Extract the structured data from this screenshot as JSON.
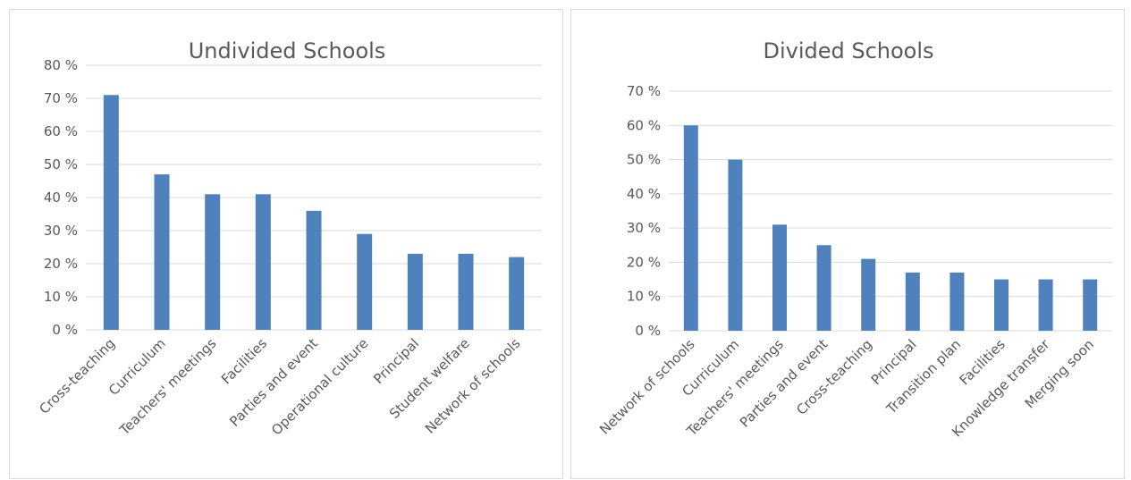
{
  "chart_data": [
    {
      "type": "bar",
      "title": "Undivided Schools",
      "xlabel": "",
      "ylabel": "",
      "ylim": [
        0,
        80
      ],
      "yticks": [
        "0 %",
        "10 %",
        "20 %",
        "30 %",
        "40 %",
        "50 %",
        "60 %",
        "70 %",
        "80 %"
      ],
      "categories": [
        "Cross-teaching",
        "Curriculum",
        "Teachers' meetings",
        "Facilities",
        "Parties and event",
        "Operational culture",
        "Principal",
        "Student welfare",
        "Network of schools"
      ],
      "values": [
        71,
        47,
        41,
        41,
        36,
        29,
        23,
        23,
        22
      ],
      "grid": true,
      "legend": "none",
      "bar_color": "#4f81bd"
    },
    {
      "type": "bar",
      "title": "Divided Schools",
      "xlabel": "",
      "ylabel": "",
      "ylim": [
        0,
        70
      ],
      "yticks": [
        "0 %",
        "10 %",
        "20 %",
        "30 %",
        "40 %",
        "50 %",
        "60 %",
        "70 %"
      ],
      "categories": [
        "Network of schools",
        "Curriculum",
        "Teachers' meetings",
        "Parties and event",
        "Cross-teaching",
        "Principal",
        "Transition plan",
        "Facilities",
        "Knowledge transfer",
        "Merging soon"
      ],
      "values": [
        60,
        50,
        31,
        25,
        21,
        17,
        17,
        15,
        15,
        15
      ],
      "grid": true,
      "legend": "none",
      "bar_color": "#4f81bd"
    }
  ]
}
